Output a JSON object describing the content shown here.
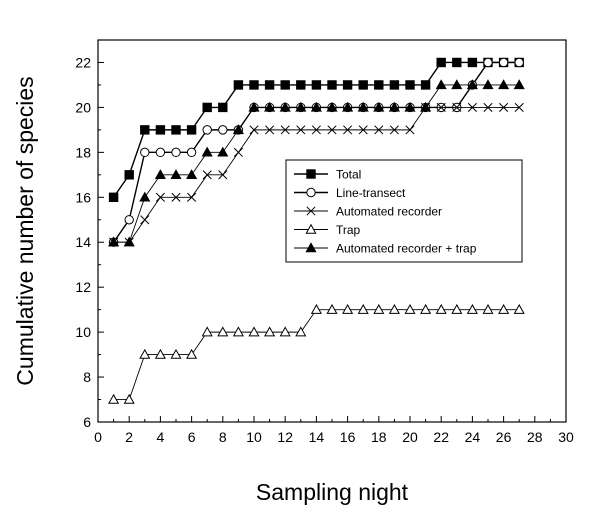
{
  "chart_data": {
    "type": "line",
    "xlabel": "Sampling night",
    "ylabel": "Cumulative number of species",
    "xlim": [
      0,
      30
    ],
    "ylim": [
      6,
      23
    ],
    "xticks": [
      0,
      2,
      4,
      6,
      8,
      10,
      12,
      14,
      16,
      18,
      20,
      22,
      24,
      26,
      28,
      30
    ],
    "yticks": [
      6,
      8,
      10,
      12,
      14,
      16,
      18,
      20,
      22
    ],
    "grid": false,
    "legend_position": "center-right",
    "x": [
      1,
      2,
      3,
      4,
      5,
      6,
      7,
      8,
      9,
      10,
      11,
      12,
      13,
      14,
      15,
      16,
      17,
      18,
      19,
      20,
      21,
      22,
      23,
      24,
      25,
      26,
      27
    ],
    "series": [
      {
        "name": "Total",
        "marker": "square-filled",
        "line": "solid",
        "values": [
          16,
          17,
          19,
          19,
          19,
          19,
          20,
          20,
          21,
          21,
          21,
          21,
          21,
          21,
          21,
          21,
          21,
          21,
          21,
          21,
          21,
          22,
          22,
          22,
          22,
          22,
          22
        ]
      },
      {
        "name": "Line-transect",
        "marker": "circle-open",
        "line": "solid",
        "values": [
          14,
          15,
          18,
          18,
          18,
          18,
          19,
          19,
          19,
          20,
          20,
          20,
          20,
          20,
          20,
          20,
          20,
          20,
          20,
          20,
          20,
          20,
          20,
          21,
          22,
          22,
          22
        ]
      },
      {
        "name": "Automated recorder",
        "marker": "cross",
        "line": "thin",
        "values": [
          14,
          14,
          15,
          16,
          16,
          16,
          17,
          17,
          18,
          19,
          19,
          19,
          19,
          19,
          19,
          19,
          19,
          19,
          19,
          19,
          20,
          20,
          20,
          20,
          20,
          20,
          20
        ]
      },
      {
        "name": "Trap",
        "marker": "triangle-open",
        "line": "thin",
        "values": [
          7,
          7,
          9,
          9,
          9,
          9,
          10,
          10,
          10,
          10,
          10,
          10,
          10,
          11,
          11,
          11,
          11,
          11,
          11,
          11,
          11,
          11,
          11,
          11,
          11,
          11,
          11
        ]
      },
      {
        "name": "Automated recorder + trap",
        "marker": "triangle-filled",
        "line": "thin",
        "values": [
          14,
          14,
          16,
          17,
          17,
          17,
          18,
          18,
          19,
          20,
          20,
          20,
          20,
          20,
          20,
          20,
          20,
          20,
          20,
          20,
          20,
          21,
          21,
          21,
          21,
          21,
          21
        ]
      }
    ]
  }
}
